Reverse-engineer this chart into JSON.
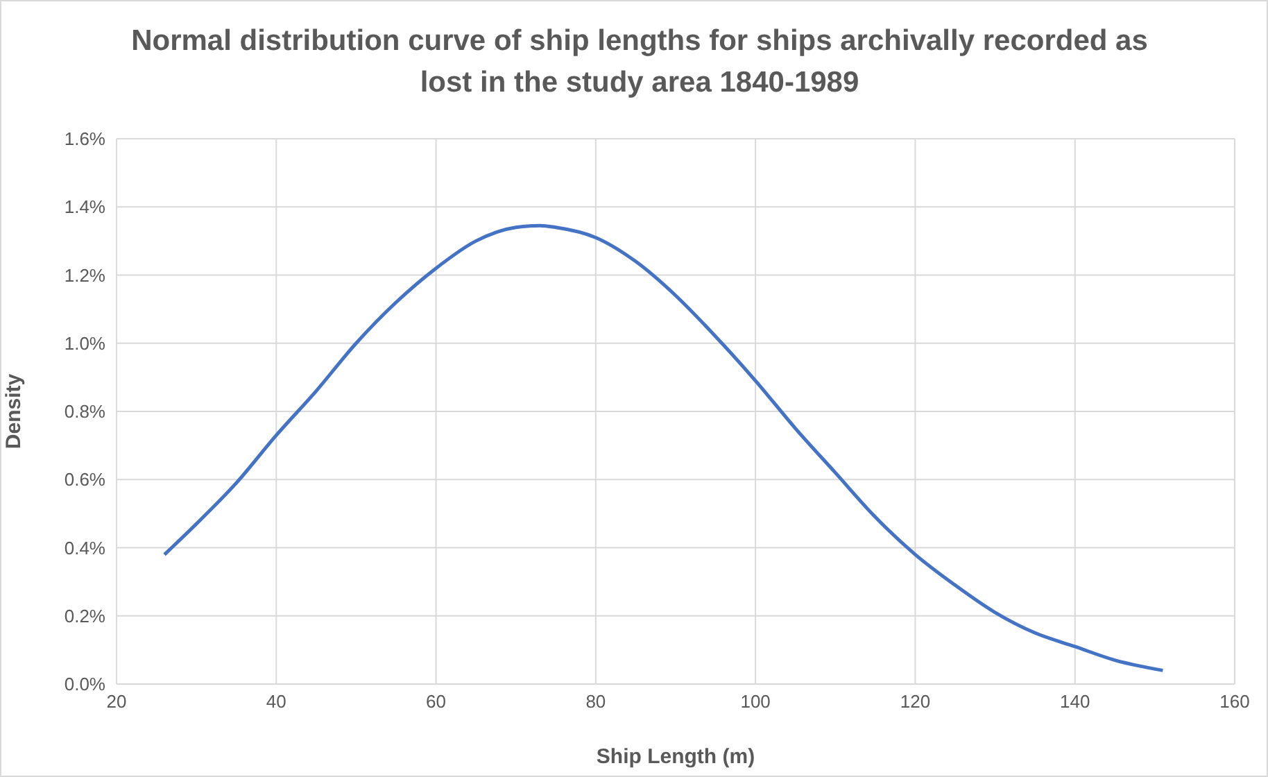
{
  "chart_data": {
    "type": "line",
    "title": "Normal distribution curve of ship lengths for ships archivally recorded as lost in the study area 1840-1989",
    "xlabel": "Ship Length (m)",
    "ylabel": "Density",
    "x": [
      26,
      30,
      35,
      40,
      45,
      50,
      55,
      60,
      65,
      70,
      73,
      75,
      80,
      85,
      90,
      95,
      100,
      105,
      110,
      115,
      120,
      125,
      130,
      135,
      140,
      145,
      151
    ],
    "series": [
      {
        "color": "#4472c4",
        "values": [
          0.38,
          0.47,
          0.59,
          0.73,
          0.86,
          1.0,
          1.12,
          1.22,
          1.3,
          1.34,
          1.345,
          1.34,
          1.31,
          1.24,
          1.14,
          1.02,
          0.89,
          0.75,
          0.62,
          0.49,
          0.38,
          0.29,
          0.21,
          0.15,
          0.11,
          0.07,
          0.04
        ]
      }
    ],
    "xlim": [
      20,
      160
    ],
    "xticks": [
      20,
      40,
      60,
      80,
      100,
      120,
      140,
      160
    ],
    "ylim": [
      0,
      1.6
    ],
    "yticks": [
      {
        "value": 0,
        "label": "0.0%"
      },
      {
        "value": 0.2,
        "label": "0.2%"
      },
      {
        "value": 0.4,
        "label": "0.4%"
      },
      {
        "value": 0.6,
        "label": "0.6%"
      },
      {
        "value": 0.8,
        "label": "0.8%"
      },
      {
        "value": 1.0,
        "label": "1.0%"
      },
      {
        "value": 1.2,
        "label": "1.2%"
      },
      {
        "value": 1.4,
        "label": "1.4%"
      },
      {
        "value": 1.6,
        "label": "1.6%"
      }
    ],
    "grid": true,
    "legend": false,
    "marker": "none",
    "line_style": "solid"
  }
}
